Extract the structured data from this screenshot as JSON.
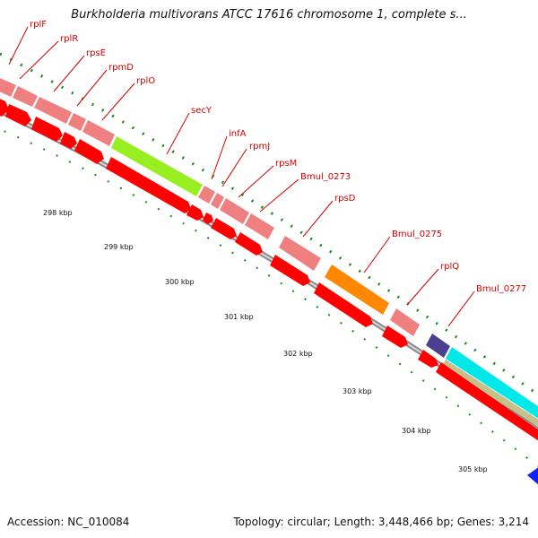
{
  "title": "Burkholderia multivorans ATCC 17616 chromosome 1, complete s...",
  "footer": {
    "accession": "Accession: NC_010084",
    "topology": "Topology: circular; Length: 3,448,466 bp; Genes: 3,214"
  },
  "ruler": [
    "298 kbp",
    "299 kbp",
    "300 kbp",
    "301 kbp",
    "302 kbp",
    "303 kbp",
    "304 kbp",
    "305 kbp"
  ],
  "gene_labels": [
    "rplF",
    "rplR",
    "rpsE",
    "rpmD",
    "rplO",
    "secY",
    "infA",
    "rpmJ",
    "rpsM",
    "Bmul_0273",
    "rpsD",
    "Bmul_0275",
    "rplQ",
    "Bmul_0277"
  ],
  "colors": {
    "cds_pink": "#f08080",
    "cds_red": "#ff0000",
    "secY": "#99ee22",
    "Bmul_0275": "#ff8800",
    "rplQ_next": "#4b3f8f",
    "cyan": "#00e8e8",
    "tan": "#c8c088",
    "blue": "#1020ff",
    "backbone": "#888888",
    "ticks": "#1a8a1a"
  }
}
